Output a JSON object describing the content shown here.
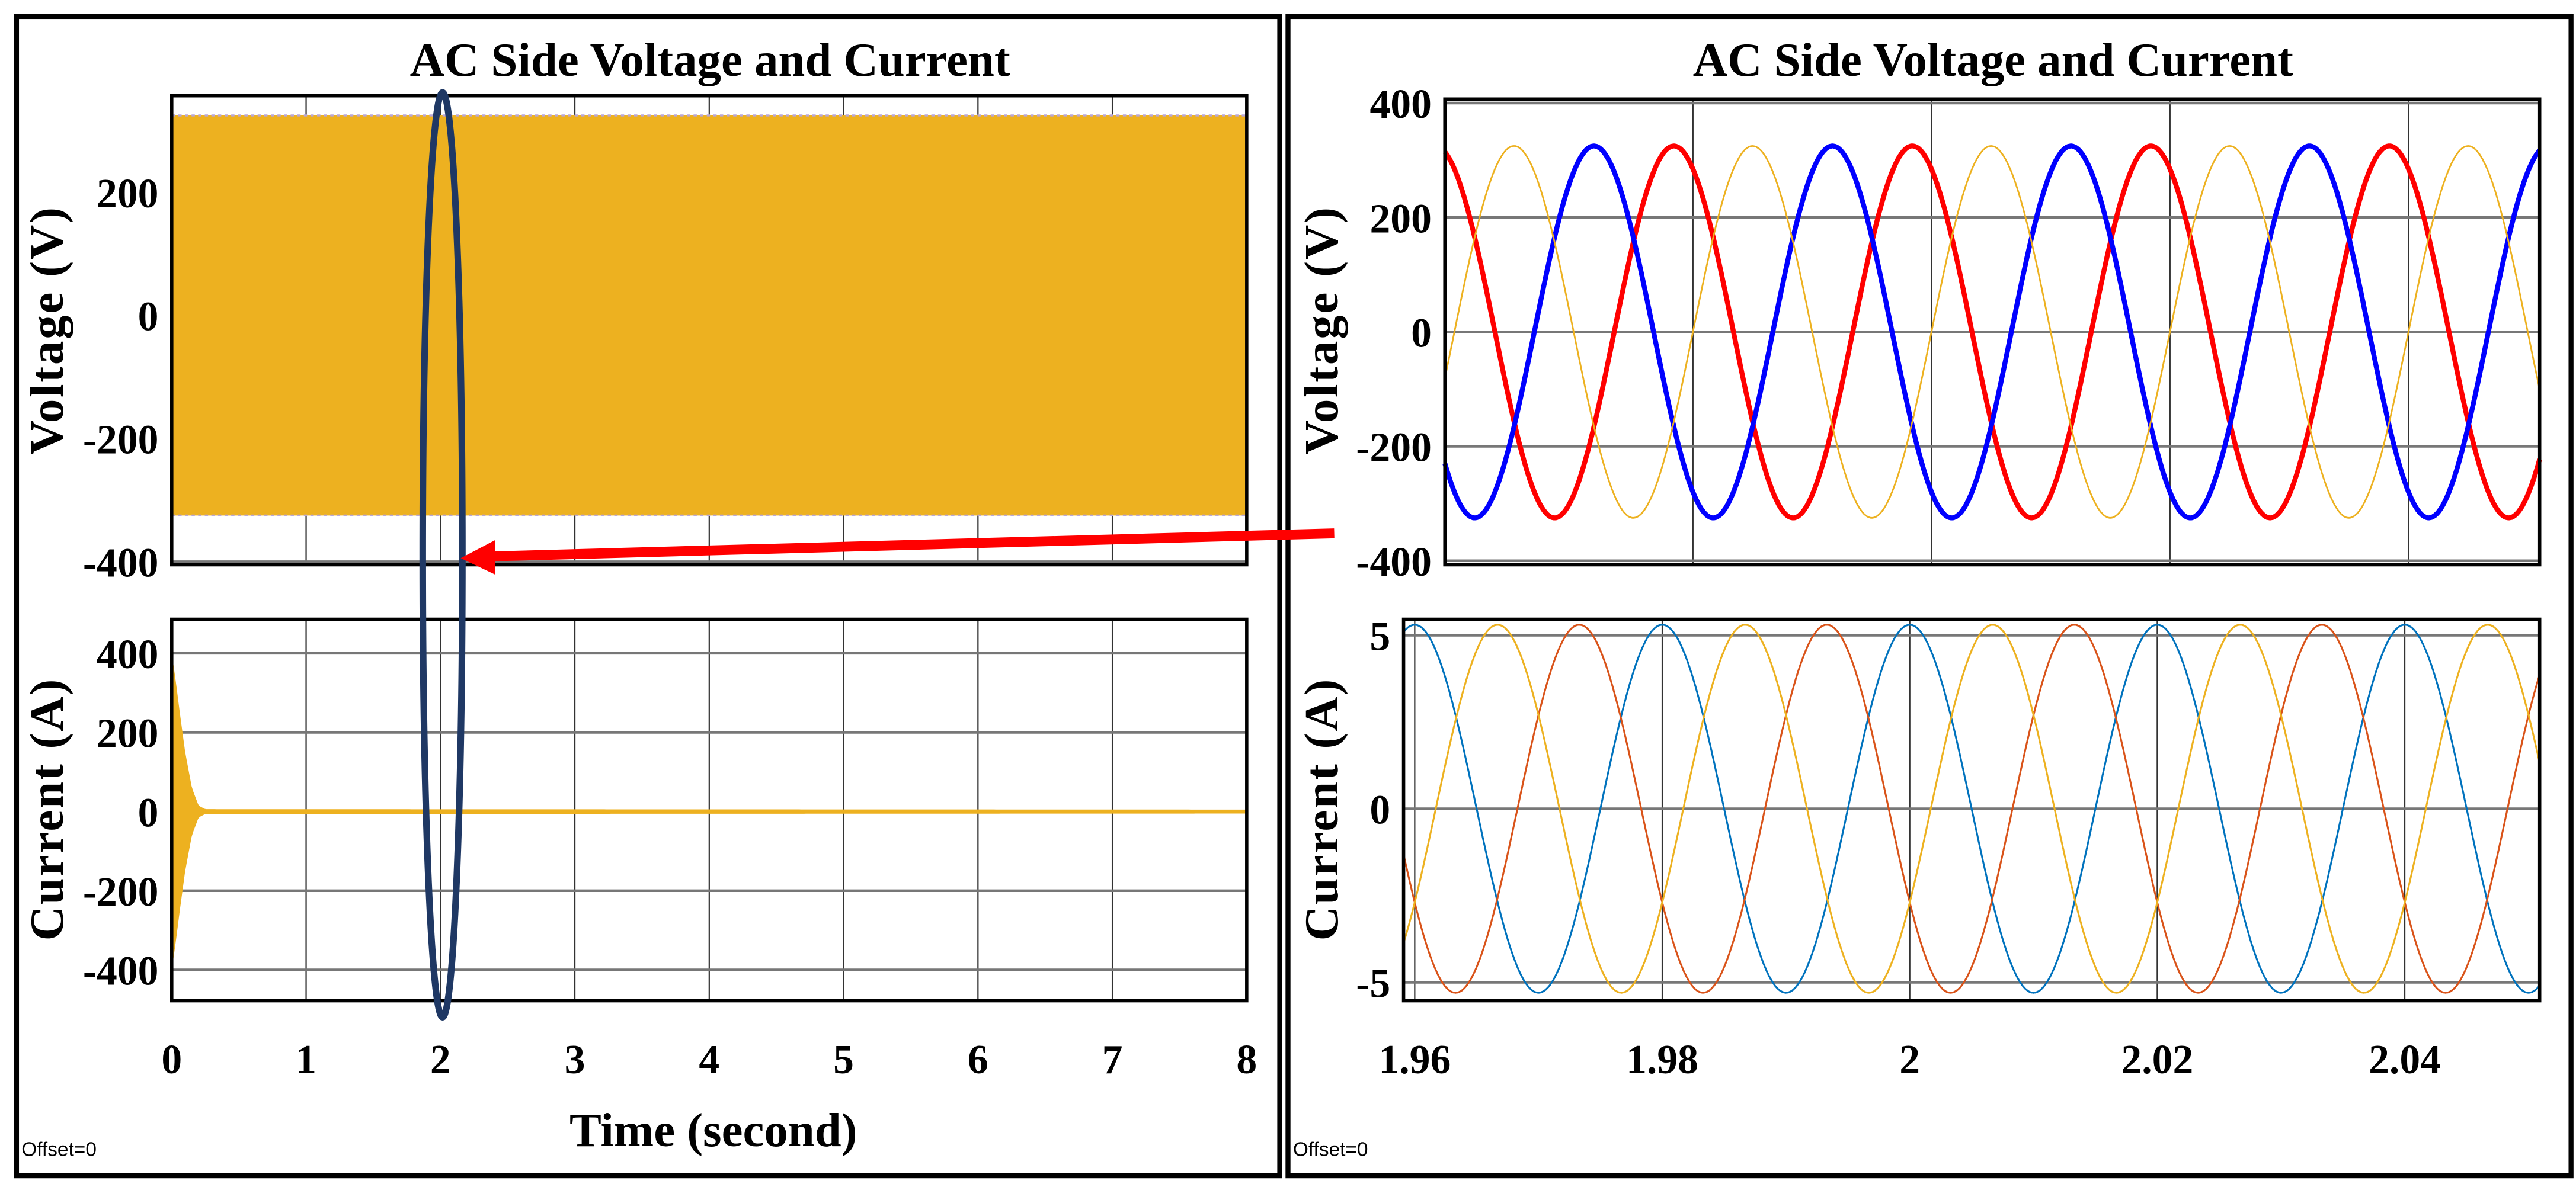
{
  "figure": {
    "left_title": "AC Side Voltage  and Current",
    "right_title": "AC Side Voltage  and Current",
    "left_offset": "Offset=0",
    "right_offset": "Offset=0",
    "xlabel": "Time (second)",
    "annotations": {
      "ellipse": {
        "around_time_s": 2,
        "color": "#1f3864"
      },
      "arrow": {
        "color": "#ff0000",
        "from": "right zoomed panel",
        "to_time_s": 2
      }
    }
  },
  "chart_data": [
    {
      "type": "area",
      "panel": "left-top",
      "title": "AC Side Voltage  and Current",
      "ylabel": "Voltage (V)",
      "xlim": [
        0,
        8
      ],
      "ylim": [
        -405,
        357
      ],
      "xticks": [
        0,
        1,
        2,
        3,
        4,
        5,
        6,
        7,
        8
      ],
      "yticks": [
        -400,
        -200,
        0,
        200
      ],
      "ytick_labels": [
        "-400",
        "-200",
        "0",
        "200"
      ],
      "grid": true,
      "series": [
        {
          "color": "#edb120",
          "amplitude": 325,
          "frequency_hz": 50,
          "note": "three-phase, dense band"
        }
      ]
    },
    {
      "type": "area",
      "panel": "left-bottom",
      "ylabel": "Current (A)",
      "xlabel": "Time (second)",
      "xlim": [
        0,
        8
      ],
      "ylim": [
        -478,
        486
      ],
      "xticks": [
        0,
        1,
        2,
        3,
        4,
        5,
        6,
        7,
        8
      ],
      "xtick_labels": [
        "0",
        "1",
        "2",
        "3",
        "4",
        "5",
        "6",
        "7",
        "8"
      ],
      "yticks": [
        -400,
        -200,
        0,
        200,
        400
      ],
      "ytick_labels": [
        "-400",
        "-200",
        "0",
        "200",
        "400"
      ],
      "grid": true,
      "series": [
        {
          "color": "#edb120",
          "envelope": [
            [
              0,
              400
            ],
            [
              0.03,
              330
            ],
            [
              0.06,
              250
            ],
            [
              0.1,
              150
            ],
            [
              0.15,
              60
            ],
            [
              0.2,
              15
            ],
            [
              0.25,
              6
            ],
            [
              8,
              5
            ]
          ]
        }
      ]
    },
    {
      "type": "line",
      "panel": "right-top",
      "title": "AC Side Voltage  and Current",
      "ylabel": "Voltage (V)",
      "xlim": [
        1.9592,
        2.051
      ],
      "ylim": [
        -407,
        407
      ],
      "xticks": [
        1.98,
        2.0,
        2.02,
        2.04
      ],
      "yticks": [
        -400,
        -200,
        0,
        200,
        400
      ],
      "ytick_labels": [
        "-400",
        "-200",
        "0",
        "200",
        "400"
      ],
      "grid": true,
      "series": [
        {
          "color": "#ff0000",
          "amplitude": 325,
          "frequency_hz": 50,
          "peak_time": 1.9984,
          "width": "thick"
        },
        {
          "color": "#0000ff",
          "amplitude": 325,
          "frequency_hz": 50,
          "peak_time": 1.9917,
          "width": "thick"
        },
        {
          "color": "#edb120",
          "amplitude": 325,
          "frequency_hz": 50,
          "peak_time": 1.985,
          "width": "thin"
        }
      ]
    },
    {
      "type": "line",
      "panel": "right-bottom",
      "ylabel": "Current (A)",
      "xlim": [
        1.9591,
        2.0509
      ],
      "ylim": [
        -5.53,
        5.46
      ],
      "xticks": [
        1.96,
        1.98,
        2.0,
        2.02,
        2.04
      ],
      "xtick_labels": [
        "1.96",
        "1.98",
        "2",
        "2.02",
        "2.04"
      ],
      "yticks": [
        -5,
        0,
        5
      ],
      "ytick_labels": [
        "-5",
        "0",
        "5"
      ],
      "grid": true,
      "series": [
        {
          "color": "#0072bd",
          "amplitude": 5.3,
          "frequency_hz": 50,
          "peak_time": 2.0
        },
        {
          "color": "#d95319",
          "amplitude": 5.3,
          "frequency_hz": 50,
          "peak_time": 1.9933
        },
        {
          "color": "#edb120",
          "amplitude": 5.3,
          "frequency_hz": 50,
          "peak_time": 2.0067
        }
      ]
    }
  ]
}
